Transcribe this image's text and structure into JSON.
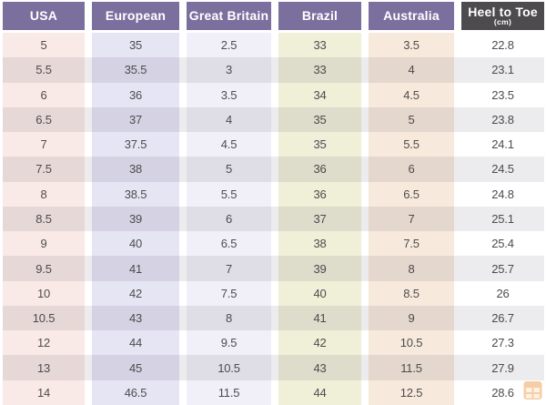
{
  "table": {
    "header": {
      "cells": [
        {
          "label": "USA"
        },
        {
          "label": "European"
        },
        {
          "label": "Great Britain"
        },
        {
          "label": "Brazil"
        },
        {
          "label": "Australia"
        },
        {
          "label": "Heel to Toe",
          "sublabel": "(cm)"
        }
      ]
    }
  },
  "chart_data": {
    "type": "table",
    "title": "",
    "columns": [
      "USA",
      "European",
      "Great Britain",
      "Brazil",
      "Australia",
      "Heel to Toe (cm)"
    ],
    "rows": [
      [
        "5",
        "35",
        "2.5",
        "33",
        "3.5",
        "22.8"
      ],
      [
        "5.5",
        "35.5",
        "3",
        "33",
        "4",
        "23.1"
      ],
      [
        "6",
        "36",
        "3.5",
        "34",
        "4.5",
        "23.5"
      ],
      [
        "6.5",
        "37",
        "4",
        "35",
        "5",
        "23.8"
      ],
      [
        "7",
        "37.5",
        "4.5",
        "35",
        "5.5",
        "24.1"
      ],
      [
        "7.5",
        "38",
        "5",
        "36",
        "6",
        "24.5"
      ],
      [
        "8",
        "38.5",
        "5.5",
        "36",
        "6.5",
        "24.8"
      ],
      [
        "8.5",
        "39",
        "6",
        "37",
        "7",
        "25.1"
      ],
      [
        "9",
        "40",
        "6.5",
        "38",
        "7.5",
        "25.4"
      ],
      [
        "9.5",
        "41",
        "7",
        "39",
        "8",
        "25.7"
      ],
      [
        "10",
        "42",
        "7.5",
        "40",
        "8.5",
        "26"
      ],
      [
        "10.5",
        "43",
        "8",
        "41",
        "9",
        "26.7"
      ],
      [
        "12",
        "44",
        "9.5",
        "42",
        "10.5",
        "27.3"
      ],
      [
        "13",
        "45",
        "10.5",
        "43",
        "11.5",
        "27.9"
      ],
      [
        "14",
        "46.5",
        "11.5",
        "44",
        "12.5",
        "28.6"
      ]
    ],
    "layout": {
      "row_striping": true,
      "striped_rows": "even",
      "grid": false
    }
  },
  "colors": {
    "header_bg": [
      "#7b6f9e",
      "#7b6f9e",
      "#7b6f9e",
      "#7b6f9e",
      "#7b6f9e",
      "#4d4b4d"
    ],
    "header_text": "#ffffff",
    "column_bg": [
      "#f9eae7",
      "#e6e5f4",
      "#f1f0f8",
      "#f0efd8",
      "#f7e9dc",
      "#ffffff"
    ],
    "cell_text": "#4e4c4e",
    "alt_row_overlay": "rgba(70,63,74,0.10)",
    "watermark_orange": "#f2a65e"
  }
}
